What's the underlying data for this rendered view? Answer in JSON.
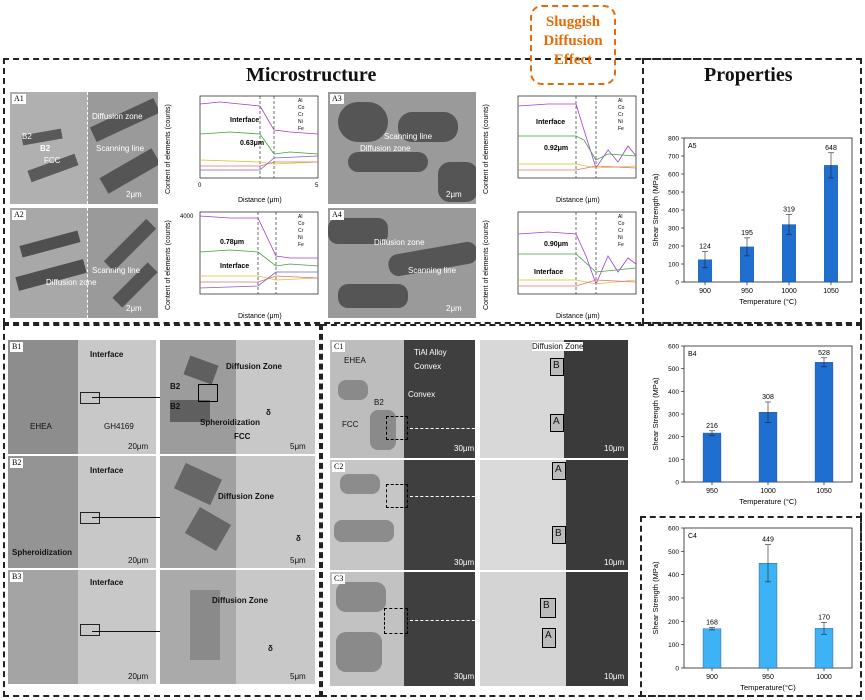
{
  "titles": {
    "microstructure": "Microstructure",
    "properties": "Properties",
    "sluggish": [
      "Sluggish",
      "Diffusion",
      "Effect"
    ]
  },
  "colors": {
    "accent_orange": "#e36c09",
    "bar_dark_blue": "#1f6fd0",
    "bar_light_blue": "#3db3f5",
    "Al": "#a040d0",
    "Co": "#e0c030",
    "Cr": "#e07070",
    "Ni": "#40a040",
    "Fe": "#8060c0"
  },
  "sem_A": {
    "A1": {
      "panel": "A1",
      "labels": [
        "Diffusion zone",
        "B2",
        "B2",
        "FCC",
        "Scanning line"
      ],
      "scale": "2μm"
    },
    "A2": {
      "panel": "A2",
      "labels": [
        "Scanning line",
        "Diffusion zone"
      ],
      "scale": "2μm"
    },
    "A3": {
      "panel": "A3",
      "labels": [
        "Scanning line",
        "Diffusion zone"
      ],
      "scale": "2μm"
    },
    "A4": {
      "panel": "A4",
      "labels": [
        "Diffusion zone",
        "Scanning line"
      ],
      "scale": "2μm"
    }
  },
  "linescans": {
    "ylabel": "Content of elements (counts)",
    "xlabel": "Distance (μm)",
    "legend": [
      "Al",
      "Co",
      "Cr",
      "Ni",
      "Fe"
    ],
    "xticks": [
      "0",
      "1",
      "2",
      "3",
      "4",
      "5"
    ],
    "yticks": [
      "0",
      "1000",
      "2000",
      "3000",
      "4000"
    ],
    "A1": {
      "interface": "Interface",
      "width": "0.63μm"
    },
    "A2": {
      "interface": "Interface",
      "width": "0.78μm"
    },
    "A3": {
      "interface": "Interface",
      "width": "0.92μm"
    },
    "A4": {
      "interface": "Interface",
      "width": "0.90μm"
    }
  },
  "sem_B": {
    "B1": {
      "panel": "B1",
      "interface": "Interface",
      "ehea": "EHEA",
      "gh": "GH4169",
      "scale1": "20μm",
      "dz": "Diffusion Zone",
      "b2a": "B2",
      "b2b": "B2",
      "spher": "Spheroidization",
      "fcc": "FCC",
      "delta": "δ",
      "scale2": "5μm"
    },
    "B2": {
      "panel": "B2",
      "interface": "Interface",
      "spher": "Spheroidization",
      "scale1": "20μm",
      "dz": "Diffusion Zone",
      "delta": "δ",
      "scale2": "5μm"
    },
    "B3": {
      "panel": "B3",
      "interface": "Interface",
      "scale1": "20μm",
      "dz": "Diffusion Zone",
      "delta": "δ",
      "scale2": "5μm"
    }
  },
  "sem_C": {
    "C1": {
      "panel": "C1",
      "ehea": "EHEA",
      "tial": "TiAl Alloy",
      "convex1": "Convex",
      "convex2": "Convex",
      "b2": "B2",
      "fcc": "FCC",
      "scale1": "30μm",
      "dz": "Diffusion Zone",
      "boxB": "B",
      "boxA": "A",
      "scale2": "10μm"
    },
    "C2": {
      "panel": "C2",
      "scale1": "30μm",
      "boxA": "A",
      "boxB": "B",
      "scale2": "10μm"
    },
    "C3": {
      "panel": "C3",
      "scale1": "30μm",
      "boxB": "B",
      "boxA": "A",
      "scale2": "10μm"
    }
  },
  "chart_data": [
    {
      "panel": "A5",
      "type": "bar",
      "categories": [
        "900",
        "950",
        "1000",
        "1050"
      ],
      "values": [
        124,
        195,
        319,
        648
      ],
      "errors": [
        45,
        50,
        55,
        70
      ],
      "xlabel": "Temperature (°C)",
      "ylabel": "Shear Strength (MPa)",
      "ylim": [
        0,
        800
      ],
      "yticks": [
        "0",
        "100",
        "200",
        "300",
        "400",
        "500",
        "600",
        "700",
        "800"
      ],
      "color": "#1f6fd0"
    },
    {
      "panel": "B4",
      "type": "bar",
      "categories": [
        "950",
        "1000",
        "1050"
      ],
      "values": [
        216,
        308,
        528
      ],
      "errors": [
        10,
        45,
        20
      ],
      "xlabel": "Temperature (°C)",
      "ylabel": "Shear Strength (MPa)",
      "ylim": [
        0,
        600
      ],
      "yticks": [
        "0",
        "100",
        "200",
        "300",
        "400",
        "500",
        "600"
      ],
      "color": "#1f6fd0"
    },
    {
      "panel": "C4",
      "type": "bar",
      "categories": [
        "900",
        "950",
        "1000"
      ],
      "values": [
        168,
        449,
        170
      ],
      "errors": [
        5,
        80,
        25
      ],
      "xlabel": "Temperature(°C)",
      "ylabel": "Shear Strength (MPa)",
      "ylim": [
        0,
        600
      ],
      "yticks": [
        "0",
        "100",
        "200",
        "300",
        "400",
        "500",
        "600"
      ],
      "color": "#3db3f5"
    }
  ]
}
